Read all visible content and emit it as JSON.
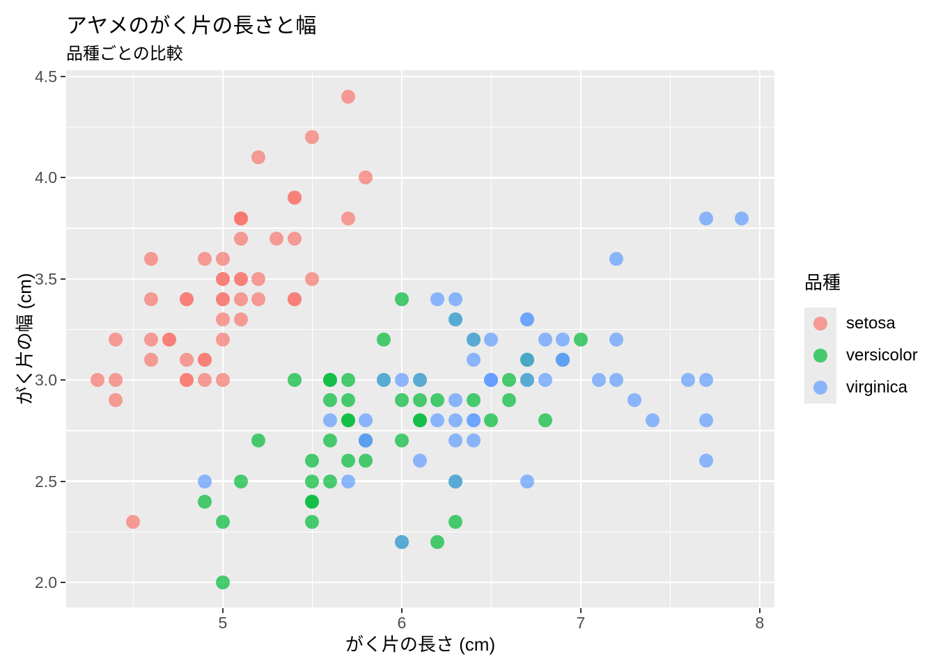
{
  "style": {
    "panel_bg": "#EBEBEB",
    "grid_color": "#FFFFFF",
    "tick_mark_color": "#333333",
    "tick_label_color": "#4D4D4D",
    "text_color": "#000000",
    "point_alpha": 0.7
  },
  "chart_data": {
    "type": "scatter",
    "title": "アヤメのがく片の長さと幅",
    "subtitle": "品種ごとの比較",
    "xlabel": "がく片の長さ (cm)",
    "ylabel": "がく片の幅 (cm)",
    "legend_title": "品種",
    "legend_position": "right",
    "grid": true,
    "xlim": [
      4.125,
      8.082
    ],
    "ylim": [
      1.876,
      4.531
    ],
    "x_ticks": [
      5,
      6,
      7,
      8
    ],
    "x_tick_labels": [
      "5",
      "6",
      "7",
      "8"
    ],
    "y_ticks": [
      2.0,
      2.5,
      3.0,
      3.5,
      4.0,
      4.5
    ],
    "y_tick_labels": [
      "2.0",
      "2.5",
      "3.0",
      "3.5",
      "4.0",
      "4.5"
    ],
    "series": [
      {
        "name": "setosa",
        "color": "#F8766D",
        "points": [
          [
            5.1,
            3.5
          ],
          [
            4.9,
            3.0
          ],
          [
            4.7,
            3.2
          ],
          [
            4.6,
            3.1
          ],
          [
            5.0,
            3.6
          ],
          [
            5.4,
            3.9
          ],
          [
            4.6,
            3.4
          ],
          [
            5.0,
            3.4
          ],
          [
            4.4,
            2.9
          ],
          [
            4.9,
            3.1
          ],
          [
            5.4,
            3.7
          ],
          [
            4.8,
            3.4
          ],
          [
            4.8,
            3.0
          ],
          [
            4.3,
            3.0
          ],
          [
            5.8,
            4.0
          ],
          [
            5.7,
            4.4
          ],
          [
            5.4,
            3.9
          ],
          [
            5.1,
            3.5
          ],
          [
            5.7,
            3.8
          ],
          [
            5.1,
            3.8
          ],
          [
            5.4,
            3.4
          ],
          [
            5.1,
            3.7
          ],
          [
            4.6,
            3.6
          ],
          [
            5.1,
            3.3
          ],
          [
            4.8,
            3.4
          ],
          [
            5.0,
            3.0
          ],
          [
            5.0,
            3.4
          ],
          [
            5.2,
            3.5
          ],
          [
            5.2,
            3.4
          ],
          [
            4.7,
            3.2
          ],
          [
            4.8,
            3.1
          ],
          [
            5.4,
            3.4
          ],
          [
            5.2,
            4.1
          ],
          [
            5.5,
            4.2
          ],
          [
            4.9,
            3.1
          ],
          [
            5.0,
            3.2
          ],
          [
            5.5,
            3.5
          ],
          [
            4.9,
            3.6
          ],
          [
            4.4,
            3.0
          ],
          [
            5.1,
            3.4
          ],
          [
            5.0,
            3.5
          ],
          [
            4.5,
            2.3
          ],
          [
            4.4,
            3.2
          ],
          [
            5.0,
            3.5
          ],
          [
            5.1,
            3.8
          ],
          [
            4.8,
            3.0
          ],
          [
            5.1,
            3.8
          ],
          [
            4.6,
            3.2
          ],
          [
            5.3,
            3.7
          ],
          [
            5.0,
            3.3
          ]
        ]
      },
      {
        "name": "versicolor",
        "color": "#00BA38",
        "points": [
          [
            7.0,
            3.2
          ],
          [
            6.4,
            3.2
          ],
          [
            6.9,
            3.1
          ],
          [
            5.5,
            2.3
          ],
          [
            6.5,
            2.8
          ],
          [
            5.7,
            2.8
          ],
          [
            6.3,
            3.3
          ],
          [
            4.9,
            2.4
          ],
          [
            6.6,
            2.9
          ],
          [
            5.2,
            2.7
          ],
          [
            5.0,
            2.0
          ],
          [
            5.9,
            3.0
          ],
          [
            6.0,
            2.2
          ],
          [
            6.1,
            2.9
          ],
          [
            5.6,
            2.9
          ],
          [
            6.7,
            3.1
          ],
          [
            5.6,
            3.0
          ],
          [
            5.8,
            2.7
          ],
          [
            6.2,
            2.2
          ],
          [
            5.6,
            2.5
          ],
          [
            5.9,
            3.2
          ],
          [
            6.1,
            2.8
          ],
          [
            6.3,
            2.5
          ],
          [
            6.1,
            2.8
          ],
          [
            6.4,
            2.9
          ],
          [
            6.6,
            3.0
          ],
          [
            6.8,
            2.8
          ],
          [
            6.7,
            3.0
          ],
          [
            6.0,
            2.9
          ],
          [
            5.7,
            2.6
          ],
          [
            5.5,
            2.4
          ],
          [
            5.5,
            2.4
          ],
          [
            5.8,
            2.7
          ],
          [
            6.0,
            2.7
          ],
          [
            5.4,
            3.0
          ],
          [
            6.0,
            3.4
          ],
          [
            6.7,
            3.1
          ],
          [
            6.3,
            2.3
          ],
          [
            5.6,
            3.0
          ],
          [
            5.5,
            2.5
          ],
          [
            5.5,
            2.6
          ],
          [
            6.1,
            3.0
          ],
          [
            5.8,
            2.6
          ],
          [
            5.0,
            2.3
          ],
          [
            5.6,
            2.7
          ],
          [
            5.7,
            3.0
          ],
          [
            5.7,
            2.9
          ],
          [
            6.2,
            2.9
          ],
          [
            5.1,
            2.5
          ],
          [
            5.7,
            2.8
          ]
        ]
      },
      {
        "name": "virginica",
        "color": "#619CFF",
        "points": [
          [
            6.3,
            3.3
          ],
          [
            5.8,
            2.7
          ],
          [
            7.1,
            3.0
          ],
          [
            6.3,
            2.9
          ],
          [
            6.5,
            3.0
          ],
          [
            7.6,
            3.0
          ],
          [
            4.9,
            2.5
          ],
          [
            7.3,
            2.9
          ],
          [
            6.7,
            2.5
          ],
          [
            7.2,
            3.6
          ],
          [
            6.5,
            3.2
          ],
          [
            6.4,
            2.7
          ],
          [
            6.8,
            3.0
          ],
          [
            5.7,
            2.5
          ],
          [
            5.8,
            2.8
          ],
          [
            6.4,
            3.2
          ],
          [
            6.5,
            3.0
          ],
          [
            7.7,
            3.8
          ],
          [
            7.7,
            2.6
          ],
          [
            6.0,
            2.2
          ],
          [
            6.9,
            3.2
          ],
          [
            5.6,
            2.8
          ],
          [
            7.7,
            2.8
          ],
          [
            6.3,
            2.7
          ],
          [
            6.7,
            3.3
          ],
          [
            7.2,
            3.2
          ],
          [
            6.2,
            2.8
          ],
          [
            6.1,
            3.0
          ],
          [
            6.4,
            2.8
          ],
          [
            7.2,
            3.0
          ],
          [
            7.4,
            2.8
          ],
          [
            7.9,
            3.8
          ],
          [
            6.4,
            2.8
          ],
          [
            6.3,
            2.8
          ],
          [
            6.1,
            2.6
          ],
          [
            7.7,
            3.0
          ],
          [
            6.3,
            3.4
          ],
          [
            6.4,
            3.1
          ],
          [
            6.0,
            3.0
          ],
          [
            6.9,
            3.1
          ],
          [
            6.7,
            3.1
          ],
          [
            6.9,
            3.1
          ],
          [
            5.8,
            2.7
          ],
          [
            6.8,
            3.2
          ],
          [
            6.7,
            3.3
          ],
          [
            6.7,
            3.0
          ],
          [
            6.3,
            2.5
          ],
          [
            6.5,
            3.0
          ],
          [
            6.2,
            3.4
          ],
          [
            5.9,
            3.0
          ]
        ]
      }
    ]
  }
}
